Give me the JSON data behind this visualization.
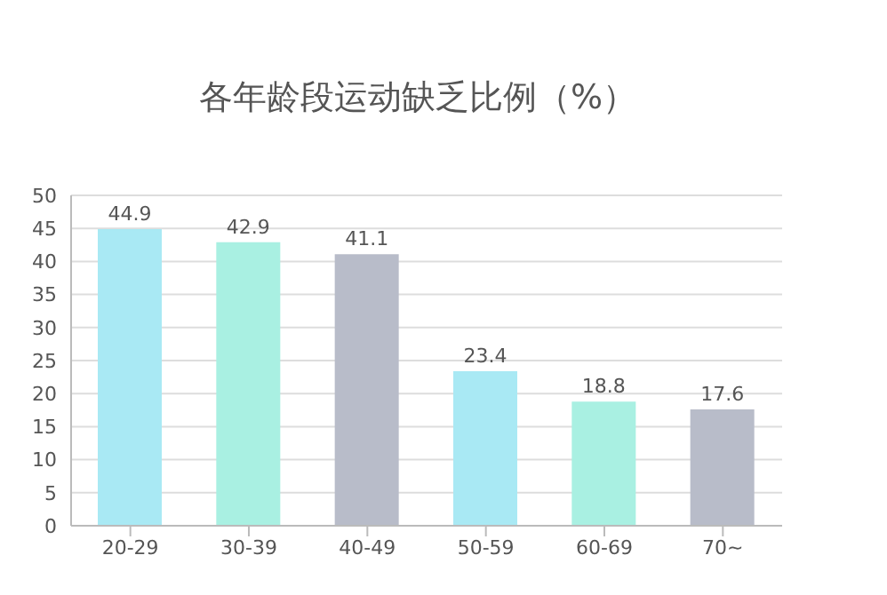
{
  "chart_data": {
    "type": "bar",
    "title": "各年龄段运动缺乏比例（%）",
    "categories": [
      "20-29",
      "30-39",
      "40-49",
      "50-59",
      "60-69",
      "70~"
    ],
    "values": [
      44.9,
      42.9,
      41.1,
      23.4,
      18.8,
      17.6
    ],
    "colors": [
      "#a9e9f4",
      "#a9f0e2",
      "#b8bcc9",
      "#a9e9f4",
      "#a9f0e2",
      "#b8bcc9"
    ],
    "ylim": [
      0,
      50
    ],
    "yticks": [
      0,
      5,
      10,
      15,
      20,
      25,
      30,
      35,
      40,
      45,
      50
    ],
    "grid": "y",
    "data_labels": true
  }
}
